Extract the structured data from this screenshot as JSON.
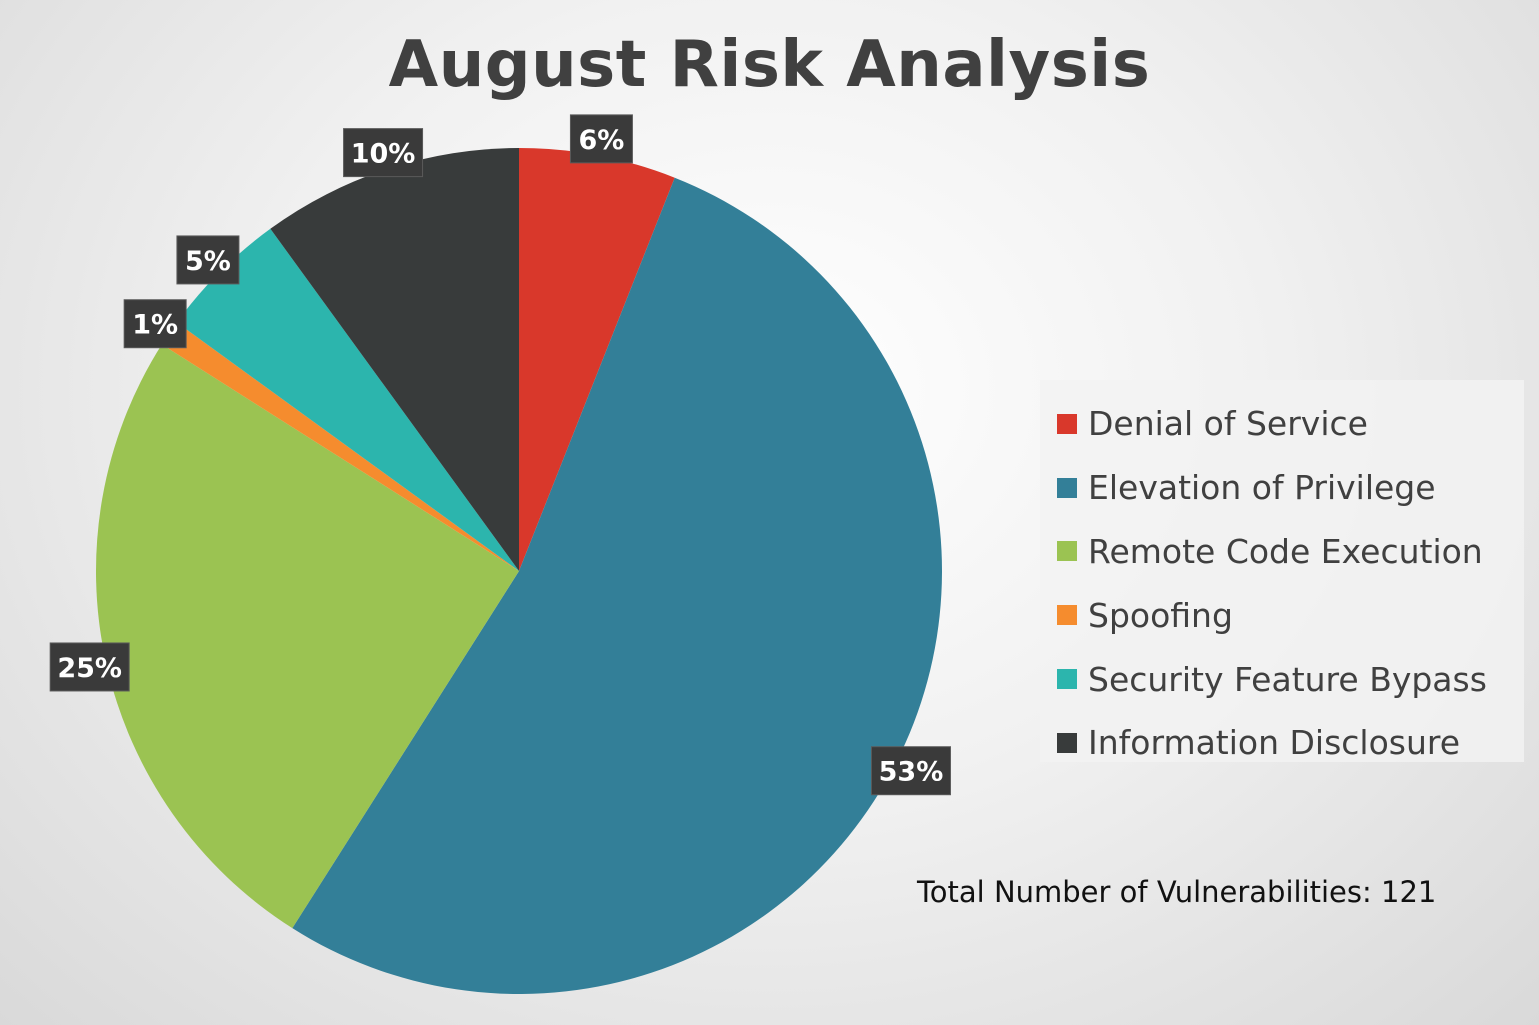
{
  "chart_data": {
    "type": "pie",
    "title": "August Risk Analysis",
    "slices": [
      {
        "label": "Denial of Service",
        "value": 6,
        "data_label": "6%",
        "color": "#d9382b"
      },
      {
        "label": "Elevation of Privilege",
        "value": 53,
        "data_label": "53%",
        "color": "#337f98"
      },
      {
        "label": "Remote Code Execution",
        "value": 25,
        "data_label": "25%",
        "color": "#9bc352"
      },
      {
        "label": "Spoofing",
        "value": 1,
        "data_label": "1%",
        "color": "#f58c2e"
      },
      {
        "label": "Security Feature Bypass",
        "value": 5,
        "data_label": "5%",
        "color": "#2cb5ad"
      },
      {
        "label": "Information Disclosure",
        "value": 10,
        "data_label": "10%",
        "color": "#383b3b"
      }
    ],
    "legend_position": "right",
    "annotation": "Total Number of Vulnerabilities: 121"
  }
}
